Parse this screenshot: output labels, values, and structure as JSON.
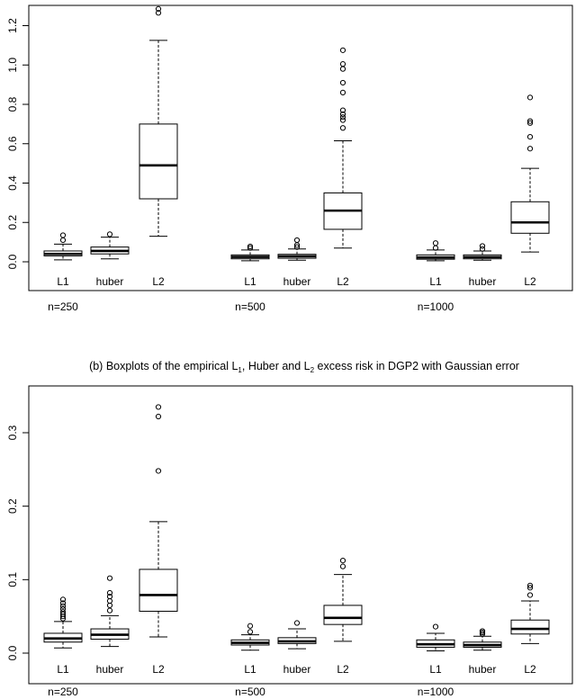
{
  "chart_data": [
    {
      "type": "boxplot",
      "title": "",
      "xlabel": "",
      "ylabel": "",
      "ylim": [
        -0.15,
        1.3
      ],
      "yticks": [
        0.0,
        0.2,
        0.4,
        0.6,
        0.8,
        1.0,
        1.2
      ],
      "ytick_labels": [
        "0.0",
        "0.2",
        "0.4",
        "0.6",
        "0.8",
        "1.0",
        "1.2"
      ],
      "groups": [
        {
          "name": "n=250",
          "boxes": [
            {
              "label": "L1",
              "whisker_low": 0.01,
              "q1": 0.03,
              "median": 0.04,
              "q3": 0.055,
              "whisker_high": 0.09,
              "outliers": [
                0.11,
                0.135
              ]
            },
            {
              "label": "huber",
              "whisker_low": 0.015,
              "q1": 0.04,
              "median": 0.055,
              "q3": 0.075,
              "whisker_high": 0.125,
              "outliers": [
                0.14
              ]
            },
            {
              "label": "L2",
              "whisker_low": 0.13,
              "q1": 0.32,
              "median": 0.49,
              "q3": 0.7,
              "whisker_high": 1.125,
              "outliers": [
                1.265,
                1.285
              ]
            }
          ]
        },
        {
          "name": "n=500",
          "boxes": [
            {
              "label": "L1",
              "whisker_low": 0.005,
              "q1": 0.015,
              "median": 0.025,
              "q3": 0.035,
              "whisker_high": 0.06,
              "outliers": [
                0.07,
                0.078
              ]
            },
            {
              "label": "huber",
              "whisker_low": 0.008,
              "q1": 0.018,
              "median": 0.028,
              "q3": 0.038,
              "whisker_high": 0.065,
              "outliers": [
                0.075,
                0.085,
                0.11
              ]
            },
            {
              "label": "L2",
              "whisker_low": 0.07,
              "q1": 0.165,
              "median": 0.26,
              "q3": 0.35,
              "whisker_high": 0.615,
              "outliers": [
                0.68,
                0.72,
                0.735,
                0.75,
                0.77,
                0.86,
                0.91,
                0.98,
                1.005,
                1.075
              ]
            }
          ]
        },
        {
          "name": "n=1000",
          "boxes": [
            {
              "label": "L1",
              "whisker_low": 0.005,
              "q1": 0.013,
              "median": 0.022,
              "q3": 0.035,
              "whisker_high": 0.06,
              "outliers": [
                0.07,
                0.095
              ]
            },
            {
              "label": "huber",
              "whisker_low": 0.008,
              "q1": 0.015,
              "median": 0.024,
              "q3": 0.035,
              "whisker_high": 0.055,
              "outliers": [
                0.065,
                0.08
              ]
            },
            {
              "label": "L2",
              "whisker_low": 0.05,
              "q1": 0.145,
              "median": 0.2,
              "q3": 0.305,
              "whisker_high": 0.475,
              "outliers": [
                0.575,
                0.635,
                0.705,
                0.715,
                0.835
              ]
            }
          ]
        }
      ]
    },
    {
      "type": "boxplot",
      "title_parts": [
        "(b) Boxplots of the empirical L",
        "1",
        ", Huber and L",
        "2",
        " excess risk in DGP2 with Gaussian error"
      ],
      "xlabel": "",
      "ylabel": "",
      "ylim": [
        -0.01,
        0.36
      ],
      "yticks": [
        0.0,
        0.1,
        0.2,
        0.3
      ],
      "ytick_labels": [
        "0.0",
        "0.1",
        "0.2",
        "0.3"
      ],
      "groups": [
        {
          "name": "n=250",
          "boxes": [
            {
              "label": "L1",
              "whisker_low": 0.007,
              "q1": 0.015,
              "median": 0.02,
              "q3": 0.027,
              "whisker_high": 0.043,
              "outliers": [
                0.047,
                0.05,
                0.053,
                0.056,
                0.06,
                0.064,
                0.068,
                0.073
              ]
            },
            {
              "label": "huber",
              "whisker_low": 0.009,
              "q1": 0.019,
              "median": 0.025,
              "q3": 0.033,
              "whisker_high": 0.051,
              "outliers": [
                0.058,
                0.065,
                0.071,
                0.077,
                0.082,
                0.102
              ]
            },
            {
              "label": "L2",
              "whisker_low": 0.022,
              "q1": 0.057,
              "median": 0.079,
              "q3": 0.114,
              "whisker_high": 0.179,
              "outliers": [
                0.248,
                0.322,
                0.335
              ]
            }
          ]
        },
        {
          "name": "n=500",
          "boxes": [
            {
              "label": "L1",
              "whisker_low": 0.004,
              "q1": 0.011,
              "median": 0.014,
              "q3": 0.018,
              "whisker_high": 0.025,
              "outliers": [
                0.029,
                0.037
              ]
            },
            {
              "label": "huber",
              "whisker_low": 0.006,
              "q1": 0.013,
              "median": 0.016,
              "q3": 0.021,
              "whisker_high": 0.033,
              "outliers": [
                0.041
              ]
            },
            {
              "label": "L2",
              "whisker_low": 0.016,
              "q1": 0.039,
              "median": 0.048,
              "q3": 0.065,
              "whisker_high": 0.107,
              "outliers": [
                0.118,
                0.126
              ]
            }
          ]
        },
        {
          "name": "n=1000",
          "boxes": [
            {
              "label": "L1",
              "whisker_low": 0.003,
              "q1": 0.008,
              "median": 0.012,
              "q3": 0.018,
              "whisker_high": 0.027,
              "outliers": [
                0.036
              ]
            },
            {
              "label": "huber",
              "whisker_low": 0.004,
              "q1": 0.008,
              "median": 0.011,
              "q3": 0.015,
              "whisker_high": 0.023,
              "outliers": [
                0.026,
                0.028,
                0.03
              ]
            },
            {
              "label": "L2",
              "whisker_low": 0.013,
              "q1": 0.026,
              "median": 0.033,
              "q3": 0.045,
              "whisker_high": 0.071,
              "outliers": [
                0.079,
                0.089,
                0.092
              ]
            }
          ]
        }
      ]
    }
  ]
}
